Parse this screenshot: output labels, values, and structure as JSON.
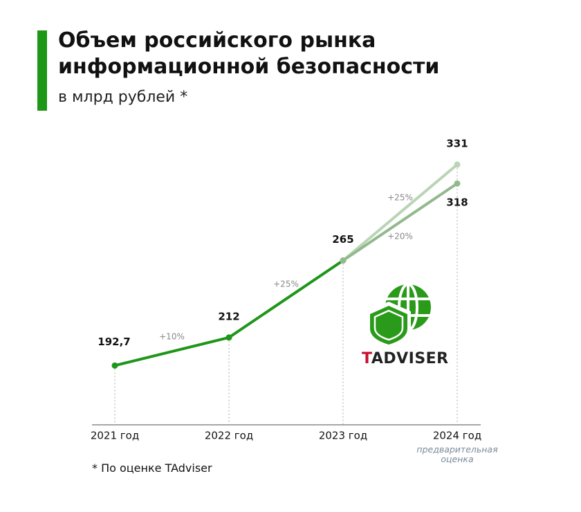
{
  "chart_data": {
    "type": "line",
    "title": "Объем российского рынка информационной безопасности",
    "subtitle": "в млрд рублей *",
    "categories": [
      "2021 год",
      "2022 год",
      "2023 год",
      "2024 год"
    ],
    "forecast_note": "предварительная оценка",
    "footnote": "* По оценке TAdviser",
    "logo": "TADVISER",
    "ylim": [
      150,
      350
    ],
    "series": [
      {
        "color": "#1e9618",
        "values": [
          192.7,
          212,
          265,
          null
        ],
        "value_labels": [
          "192,7",
          "212",
          "265",
          null
        ],
        "growth_labels": [
          null,
          "+10%",
          "+25%",
          null
        ]
      },
      {
        "color": "#b9d5b4",
        "values": [
          null,
          null,
          265,
          331
        ],
        "value_labels": [
          null,
          null,
          null,
          "331"
        ],
        "growth_labels": [
          null,
          null,
          null,
          "+25%"
        ]
      },
      {
        "color": "#92b98d",
        "values": [
          null,
          null,
          265,
          318
        ],
        "value_labels": [
          null,
          null,
          null,
          "318"
        ],
        "growth_labels": [
          null,
          null,
          null,
          "+20%"
        ]
      }
    ]
  }
}
